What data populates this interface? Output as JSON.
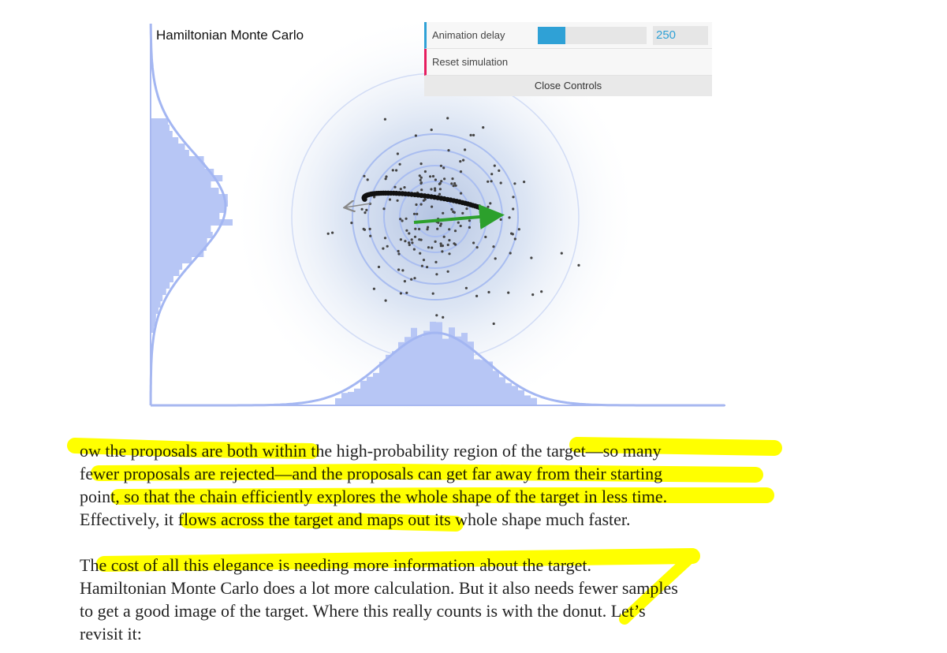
{
  "header": {
    "title": "Hamiltonian Monte Carlo"
  },
  "controls": {
    "animation_delay": {
      "label": "Animation delay",
      "value": 250
    },
    "reset": "Reset simulation",
    "close": "Close Controls"
  },
  "article": {
    "paragraphs": [
      [
        "ow the proposals are both within the high-probability region of the target—so many",
        "fewer proposals are rejected—and the proposals can get far away from their starting",
        "point, so that the chain efficiently explores the whole shape of the target in less time.",
        "Effectively, it flows across the target and maps out its whole shape much faster."
      ],
      [
        "The cost of all this elegance is needing more information about the target.",
        "Hamiltonian Monte Carlo does a lot more calculation. But it also needs fewer samples",
        "to get a good image of the target. Where this really counts is with the donut. Let’s",
        "revisit it:"
      ]
    ]
  }
}
